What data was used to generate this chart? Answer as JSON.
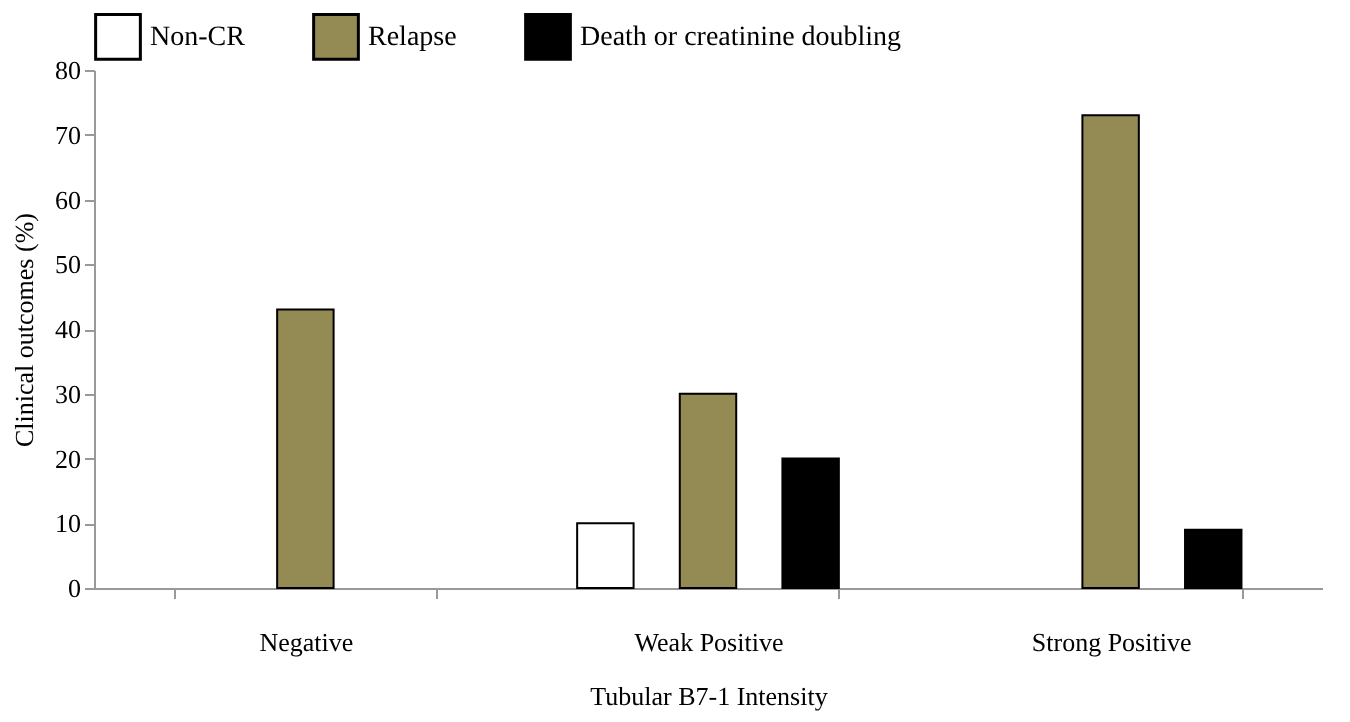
{
  "chart_data": {
    "type": "bar",
    "xlabel": "Tubular B7-1 Intensity",
    "ylabel": "Clinical outcomes (%)",
    "categories": [
      "Negative",
      "Weak  Positive",
      "Strong  Positive"
    ],
    "series": [
      {
        "name": "Non-CR",
        "color": "#ffffff",
        "values": [
          0,
          10,
          0
        ]
      },
      {
        "name": "Relapse",
        "color": "#948a54",
        "values": [
          43,
          30,
          73
        ]
      },
      {
        "name": "Death or creatinine doubling",
        "color": "#000000",
        "values": [
          0,
          20,
          9
        ]
      }
    ],
    "ylim": [
      0,
      80
    ],
    "yticks": [
      0,
      10,
      20,
      30,
      40,
      50,
      60,
      70,
      80
    ],
    "grid": false,
    "legend": "top"
  }
}
